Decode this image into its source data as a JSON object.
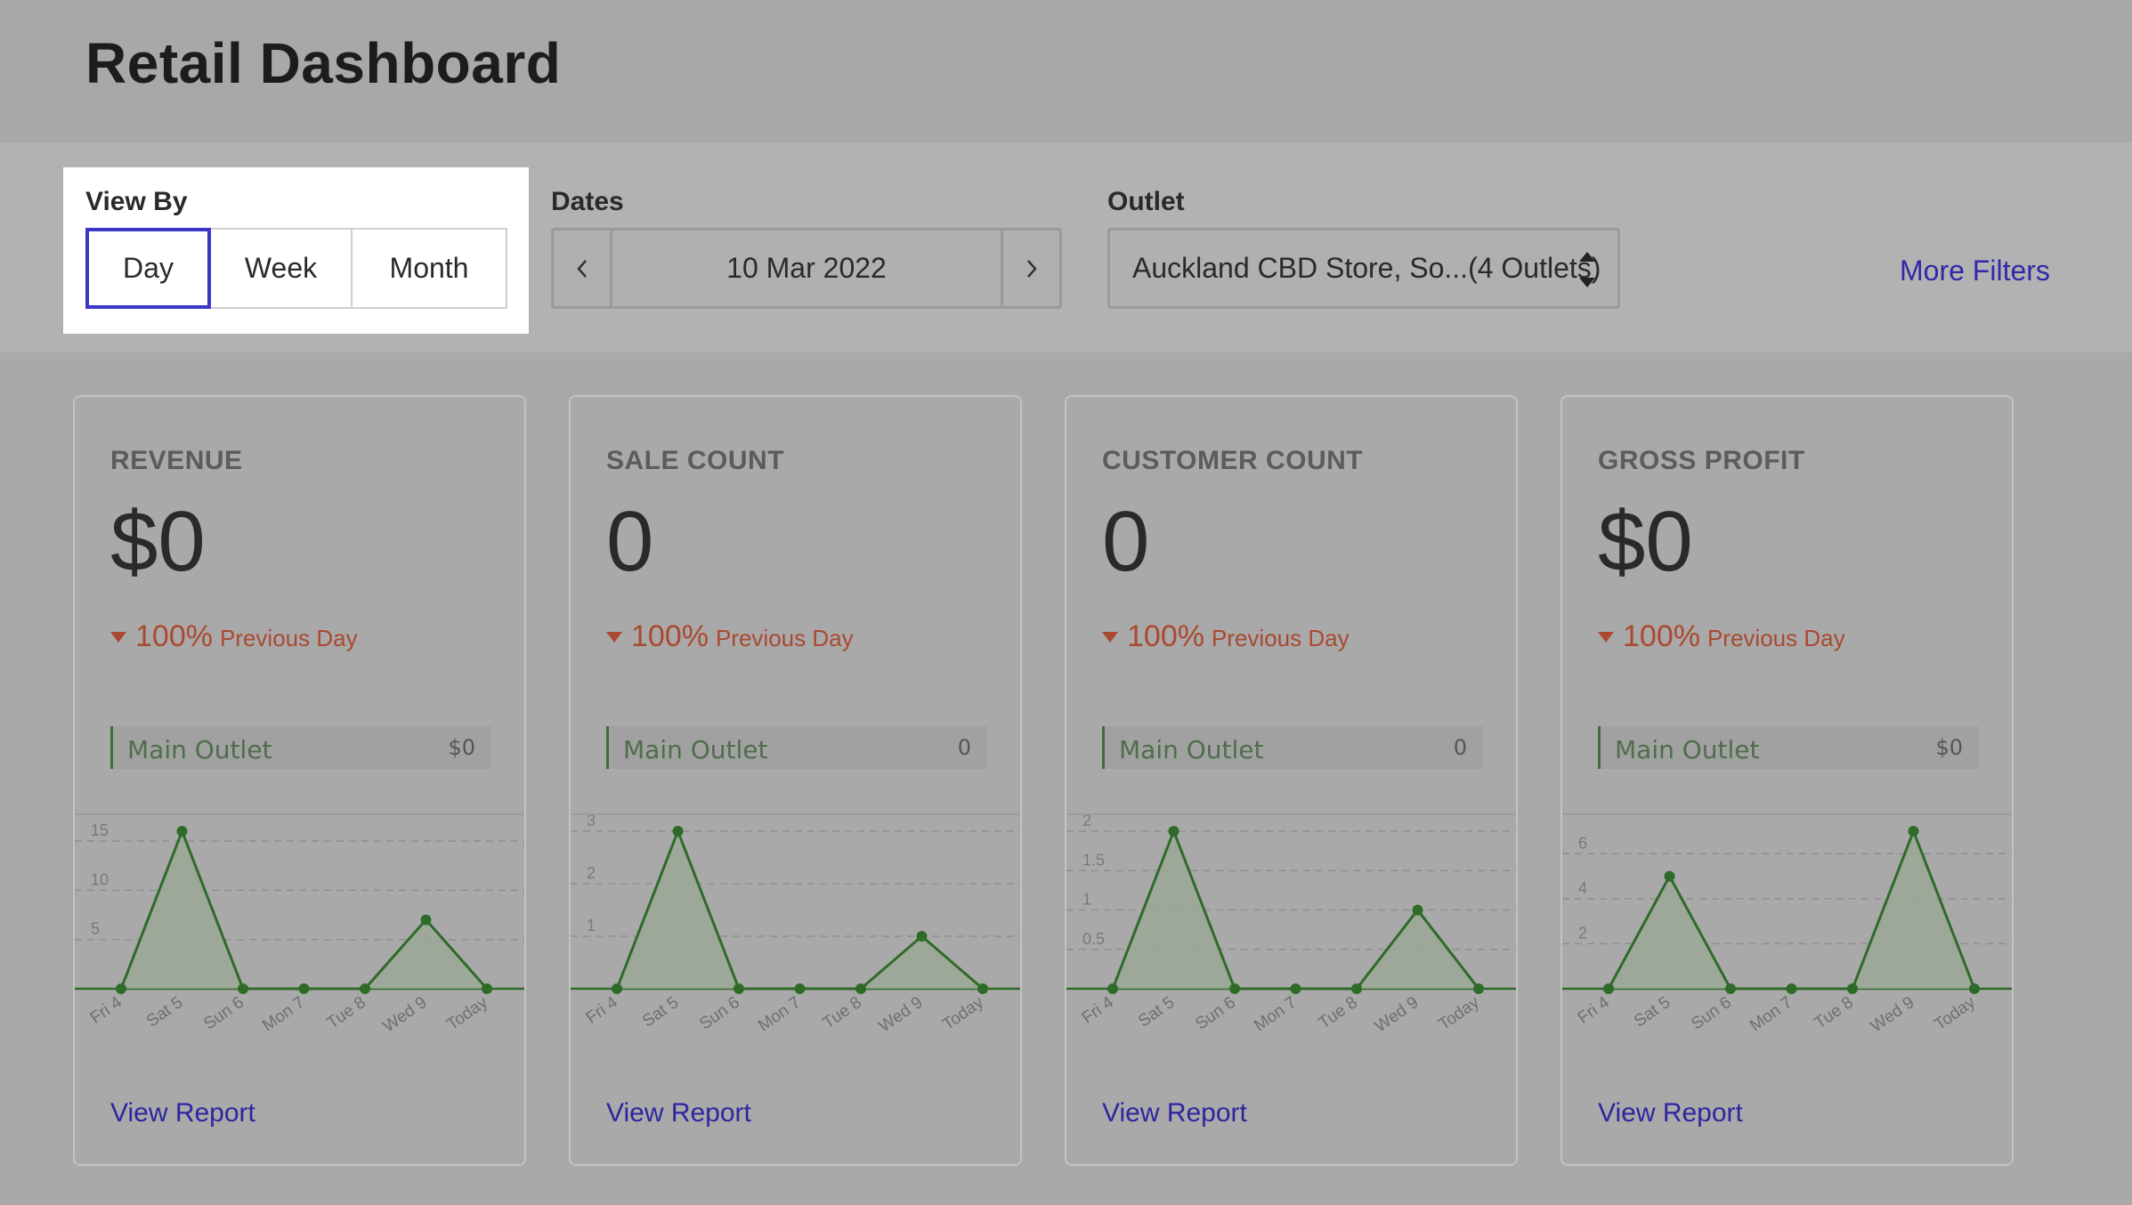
{
  "title": "Retail Dashboard",
  "filters": {
    "view_by": {
      "label": "View By",
      "options": [
        "Day",
        "Week",
        "Month"
      ],
      "selected": "Day"
    },
    "dates": {
      "label": "Dates",
      "value": "10 Mar 2022",
      "prev_icon": "chevron-left-icon",
      "next_icon": "chevron-right-icon"
    },
    "outlet": {
      "label": "Outlet",
      "value": "Auckland CBD Store, So...(4 Outlets)",
      "icon": "up-down-arrows-icon"
    },
    "more_filters": "More Filters"
  },
  "colors": {
    "accent": "#3b35c8",
    "link": "#3129a8",
    "negative": "#a94a2f",
    "chart_line": "#2f6b28",
    "chart_fill": "#9aa895"
  },
  "cards": [
    {
      "title": "REVENUE",
      "value": "$0",
      "delta_pct": "100%",
      "delta_label": "Previous Day",
      "delta_direction": "down",
      "outlet_name": "Main Outlet",
      "outlet_value": "$0",
      "link": "View Report"
    },
    {
      "title": "SALE COUNT",
      "value": "0",
      "delta_pct": "100%",
      "delta_label": "Previous Day",
      "delta_direction": "down",
      "outlet_name": "Main Outlet",
      "outlet_value": "0",
      "link": "View Report"
    },
    {
      "title": "CUSTOMER COUNT",
      "value": "0",
      "delta_pct": "100%",
      "delta_label": "Previous Day",
      "delta_direction": "down",
      "outlet_name": "Main Outlet",
      "outlet_value": "0",
      "link": "View Report"
    },
    {
      "title": "GROSS PROFIT",
      "value": "$0",
      "delta_pct": "100%",
      "delta_label": "Previous Day",
      "delta_direction": "down",
      "outlet_name": "Main Outlet",
      "outlet_value": "$0",
      "link": "View Report"
    }
  ],
  "chart_data": [
    {
      "type": "area",
      "categories": [
        "Fri 4",
        "Sat 5",
        "Sun 6",
        "Mon 7",
        "Tue 8",
        "Wed 9",
        "Today"
      ],
      "values": [
        0,
        16,
        0,
        0,
        0,
        7,
        0
      ],
      "yticks": [
        5,
        10,
        15
      ],
      "ylim": [
        0,
        16
      ]
    },
    {
      "type": "area",
      "categories": [
        "Fri 4",
        "Sat 5",
        "Sun 6",
        "Mon 7",
        "Tue 8",
        "Wed 9",
        "Today"
      ],
      "values": [
        0,
        3,
        0,
        0,
        0,
        1,
        0
      ],
      "yticks": [
        1,
        2,
        3
      ],
      "ylim": [
        0,
        3
      ]
    },
    {
      "type": "area",
      "categories": [
        "Fri 4",
        "Sat 5",
        "Sun 6",
        "Mon 7",
        "Tue 8",
        "Wed 9",
        "Today"
      ],
      "values": [
        0,
        2,
        0,
        0,
        0,
        1,
        0
      ],
      "yticks": [
        0.5,
        1,
        1.5,
        2
      ],
      "ylim": [
        0,
        2
      ]
    },
    {
      "type": "area",
      "categories": [
        "Fri 4",
        "Sat 5",
        "Sun 6",
        "Mon 7",
        "Tue 8",
        "Wed 9",
        "Today"
      ],
      "values": [
        0,
        5,
        0,
        0,
        0,
        7,
        0
      ],
      "yticks": [
        2,
        4,
        6
      ],
      "ylim": [
        0,
        7
      ]
    }
  ]
}
